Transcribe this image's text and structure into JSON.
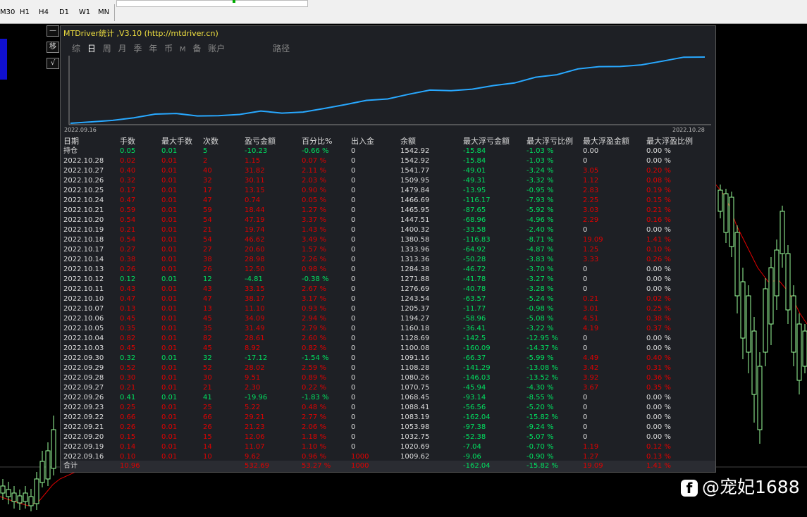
{
  "toolbar": {
    "timeframes": [
      "M30",
      "H1",
      "H4",
      "D1",
      "W1",
      "MN"
    ]
  },
  "panel": {
    "title": "MTDriver统计 ,V3.10 (http://mtdriver.cn)",
    "tabs": [
      "综",
      "日",
      "周",
      "月",
      "季",
      "年",
      "币",
      "M",
      "备",
      "账户"
    ],
    "active_tab": "日",
    "path_label": "路径",
    "side_buttons": [
      "—",
      "移",
      "√"
    ]
  },
  "chart_data": {
    "type": "line",
    "x_start_label": "2022.09.16",
    "x_end_label": "2022.10.28",
    "series": [
      {
        "values": [
          1009.62,
          1020.69,
          1032.75,
          1053.98,
          1083.19,
          1088.41,
          1068.45,
          1070.75,
          1080.26,
          1108.28,
          1091.16,
          1100.08,
          1128.69,
          1160.18,
          1194.27,
          1205.37,
          1243.54,
          1276.69,
          1271.88,
          1284.38,
          1313.36,
          1333.96,
          1380.58,
          1400.32,
          1447.51,
          1465.95,
          1466.69,
          1479.84,
          1509.95,
          1541.77,
          1542.92
        ]
      }
    ],
    "color": "#28a8ff"
  },
  "table": {
    "headers": [
      "日期",
      "手数",
      "最大手数",
      "次数",
      "盈亏金额",
      "百分比%",
      "出入金",
      "余额",
      "最大浮亏金额",
      "最大浮亏比例",
      "最大浮盈金额",
      "最大浮盈比例"
    ],
    "rows": [
      [
        "持仓",
        "0.05",
        "0.01",
        "5",
        "-10.23",
        "-0.66 %",
        "0",
        "1542.92",
        "-15.84",
        "-1.03 %",
        "0.00",
        "0.00 %"
      ],
      [
        "2022.10.28",
        "0.02",
        "0.01",
        "2",
        "1.15",
        "0.07 %",
        "0",
        "1542.92",
        "-15.84",
        "-1.03 %",
        "0",
        "0.00 %"
      ],
      [
        "2022.10.27",
        "0.40",
        "0.01",
        "40",
        "31.82",
        "2.11 %",
        "0",
        "1541.77",
        "-49.01",
        "-3.24 %",
        "3.05",
        "0.20 %"
      ],
      [
        "2022.10.26",
        "0.32",
        "0.01",
        "32",
        "30.11",
        "2.03 %",
        "0",
        "1509.95",
        "-49.31",
        "-3.32 %",
        "1.12",
        "0.08 %"
      ],
      [
        "2022.10.25",
        "0.17",
        "0.01",
        "17",
        "13.15",
        "0.90 %",
        "0",
        "1479.84",
        "-13.95",
        "-0.95 %",
        "2.83",
        "0.19 %"
      ],
      [
        "2022.10.24",
        "0.47",
        "0.01",
        "47",
        "0.74",
        "0.05 %",
        "0",
        "1466.69",
        "-116.17",
        "-7.93 %",
        "2.25",
        "0.15 %"
      ],
      [
        "2022.10.21",
        "0.59",
        "0.01",
        "59",
        "18.44",
        "1.27 %",
        "0",
        "1465.95",
        "-87.65",
        "-5.92 %",
        "3.03",
        "0.21 %"
      ],
      [
        "2022.10.20",
        "0.54",
        "0.01",
        "54",
        "47.19",
        "3.37 %",
        "0",
        "1447.51",
        "-68.96",
        "-4.96 %",
        "2.29",
        "0.16 %"
      ],
      [
        "2022.10.19",
        "0.21",
        "0.01",
        "21",
        "19.74",
        "1.43 %",
        "0",
        "1400.32",
        "-33.58",
        "-2.40 %",
        "0",
        "0.00 %"
      ],
      [
        "2022.10.18",
        "0.54",
        "0.01",
        "54",
        "46.62",
        "3.49 %",
        "0",
        "1380.58",
        "-116.83",
        "-8.71 %",
        "19.09",
        "1.41 %"
      ],
      [
        "2022.10.17",
        "0.27",
        "0.01",
        "27",
        "20.60",
        "1.57 %",
        "0",
        "1333.96",
        "-64.92",
        "-4.87 %",
        "1.25",
        "0.10 %"
      ],
      [
        "2022.10.14",
        "0.38",
        "0.01",
        "38",
        "28.98",
        "2.26 %",
        "0",
        "1313.36",
        "-50.28",
        "-3.83 %",
        "3.33",
        "0.26 %"
      ],
      [
        "2022.10.13",
        "0.26",
        "0.01",
        "26",
        "12.50",
        "0.98 %",
        "0",
        "1284.38",
        "-46.72",
        "-3.70 %",
        "0",
        "0.00 %"
      ],
      [
        "2022.10.12",
        "0.12",
        "0.01",
        "12",
        "-4.81",
        "-0.38 %",
        "0",
        "1271.88",
        "-41.78",
        "-3.27 %",
        "0",
        "0.00 %"
      ],
      [
        "2022.10.11",
        "0.43",
        "0.01",
        "43",
        "33.15",
        "2.67 %",
        "0",
        "1276.69",
        "-40.78",
        "-3.28 %",
        "0",
        "0.00 %"
      ],
      [
        "2022.10.10",
        "0.47",
        "0.01",
        "47",
        "38.17",
        "3.17 %",
        "0",
        "1243.54",
        "-63.57",
        "-5.24 %",
        "0.21",
        "0.02 %"
      ],
      [
        "2022.10.07",
        "0.13",
        "0.01",
        "13",
        "11.10",
        "0.93 %",
        "0",
        "1205.37",
        "-11.77",
        "-0.98 %",
        "3.01",
        "0.25 %"
      ],
      [
        "2022.10.06",
        "0.45",
        "0.01",
        "45",
        "34.09",
        "2.94 %",
        "0",
        "1194.27",
        "-58.96",
        "-5.08 %",
        "4.51",
        "0.38 %"
      ],
      [
        "2022.10.05",
        "0.35",
        "0.01",
        "35",
        "31.49",
        "2.79 %",
        "0",
        "1160.18",
        "-36.41",
        "-3.22 %",
        "4.19",
        "0.37 %"
      ],
      [
        "2022.10.04",
        "0.82",
        "0.01",
        "82",
        "28.61",
        "2.60 %",
        "0",
        "1128.69",
        "-142.5",
        "-12.95 %",
        "0",
        "0.00 %"
      ],
      [
        "2022.10.03",
        "0.45",
        "0.01",
        "45",
        "8.92",
        "0.82 %",
        "0",
        "1100.08",
        "-160.09",
        "-14.37 %",
        "0",
        "0.00 %"
      ],
      [
        "2022.09.30",
        "0.32",
        "0.01",
        "32",
        "-17.12",
        "-1.54 %",
        "0",
        "1091.16",
        "-66.37",
        "-5.99 %",
        "4.49",
        "0.40 %"
      ],
      [
        "2022.09.29",
        "0.52",
        "0.01",
        "52",
        "28.02",
        "2.59 %",
        "0",
        "1108.28",
        "-141.29",
        "-13.08 %",
        "3.42",
        "0.31 %"
      ],
      [
        "2022.09.28",
        "0.30",
        "0.01",
        "30",
        "9.51",
        "0.89 %",
        "0",
        "1080.26",
        "-146.03",
        "-13.52 %",
        "3.92",
        "0.36 %"
      ],
      [
        "2022.09.27",
        "0.21",
        "0.01",
        "21",
        "2.30",
        "0.22 %",
        "0",
        "1070.75",
        "-45.94",
        "-4.30 %",
        "3.67",
        "0.35 %"
      ],
      [
        "2022.09.26",
        "0.41",
        "0.01",
        "41",
        "-19.96",
        "-1.83 %",
        "0",
        "1068.45",
        "-93.14",
        "-8.55 %",
        "0",
        "0.00 %"
      ],
      [
        "2022.09.23",
        "0.25",
        "0.01",
        "25",
        "5.22",
        "0.48 %",
        "0",
        "1088.41",
        "-56.56",
        "-5.20 %",
        "0",
        "0.00 %"
      ],
      [
        "2022.09.22",
        "0.66",
        "0.01",
        "66",
        "29.21",
        "2.77 %",
        "0",
        "1083.19",
        "-162.04",
        "-15.82 %",
        "0",
        "0.00 %"
      ],
      [
        "2022.09.21",
        "0.26",
        "0.01",
        "26",
        "21.23",
        "2.06 %",
        "0",
        "1053.98",
        "-97.38",
        "-9.24 %",
        "0",
        "0.00 %"
      ],
      [
        "2022.09.20",
        "0.15",
        "0.01",
        "15",
        "12.06",
        "1.18 %",
        "0",
        "1032.75",
        "-52.38",
        "-5.07 %",
        "0",
        "0.00 %"
      ],
      [
        "2022.09.19",
        "0.14",
        "0.01",
        "14",
        "11.07",
        "1.10 %",
        "0",
        "1020.69",
        "-7.04",
        "-0.70 %",
        "1.19",
        "0.12 %"
      ],
      [
        "2022.09.16",
        "0.10",
        "0.01",
        "10",
        "9.62",
        "0.96 %",
        "1000",
        "1009.62",
        "-9.06",
        "-0.90 %",
        "1.27",
        "0.13 %"
      ]
    ],
    "total": [
      "合计",
      "10.96",
      "",
      "",
      "532.69",
      "53.27 %",
      "1000",
      "",
      "-162.04",
      "-15.82 %",
      "19.09",
      "1.41 %"
    ]
  },
  "watermark": {
    "icon": "f",
    "text": "@宠妃1688"
  }
}
